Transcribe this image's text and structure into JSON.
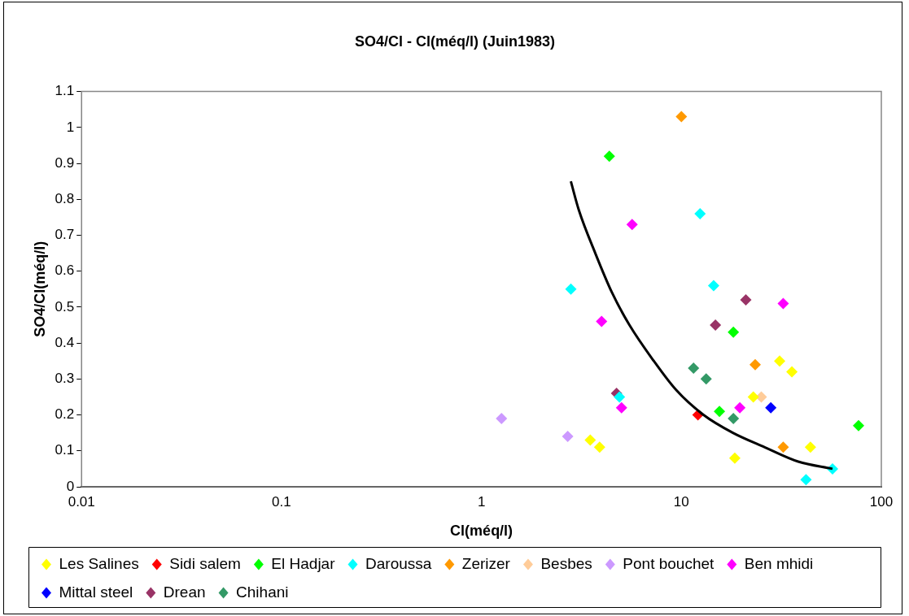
{
  "chart_data": {
    "type": "scatter",
    "title": "SO4/Cl - Cl(méq/l) (Juin1983)",
    "xlabel": "Cl(méq/l)",
    "ylabel": "SO4/Cl(méq/l)",
    "log": "x",
    "xlim": [
      0.01,
      100
    ],
    "xticks": [
      0.01,
      0.1,
      1,
      10,
      100
    ],
    "ylim": [
      0,
      1.1
    ],
    "yticks": [
      0,
      0.1,
      0.2,
      0.3,
      0.4,
      0.5,
      0.6,
      0.7,
      0.8,
      0.9,
      1,
      1.1
    ],
    "grid": false,
    "legend": "bottom",
    "marker": "diamond",
    "series": [
      {
        "name": "Les Salines",
        "color": "#ffff00",
        "x": [
          3.5,
          3.9,
          18.5,
          22.9,
          31,
          35.7,
          44.2
        ],
        "values": [
          0.13,
          0.11,
          0.08,
          0.25,
          0.35,
          0.32,
          0.11
        ]
      },
      {
        "name": "Sidi salem",
        "color": "#ff0000",
        "x": [
          12.1
        ],
        "values": [
          0.2
        ]
      },
      {
        "name": "El Hadjar",
        "color": "#00ff00",
        "x": [
          4.36,
          18.2,
          15.5,
          76.9
        ],
        "values": [
          0.92,
          0.43,
          0.21,
          0.17
        ]
      },
      {
        "name": "Daroussa",
        "color": "#00ffff",
        "x": [
          12.4,
          2.8,
          14.5,
          4.9,
          57,
          42
        ],
        "values": [
          0.76,
          0.55,
          0.56,
          0.25,
          0.05,
          0.02
        ]
      },
      {
        "name": "Zerizer",
        "color": "#ff9900",
        "x": [
          10,
          23.4,
          32.3
        ],
        "values": [
          1.03,
          0.34,
          0.11
        ]
      },
      {
        "name": "Besbes",
        "color": "#ffcc99",
        "x": [
          25.1
        ],
        "values": [
          0.25
        ]
      },
      {
        "name": "Pont bouchet",
        "color": "#cc99ff",
        "x": [
          1.26,
          2.7
        ],
        "values": [
          0.19,
          0.14
        ]
      },
      {
        "name": "Ben mhidi",
        "color": "#ff00ff",
        "x": [
          5.67,
          3.99,
          5.02,
          19.6,
          32.3
        ],
        "values": [
          0.73,
          0.46,
          0.22,
          0.22,
          0.51
        ]
      },
      {
        "name": "Mittal steel",
        "color": "#0000ff",
        "x": [
          28
        ],
        "values": [
          0.22
        ]
      },
      {
        "name": "Drean",
        "color": "#993366",
        "x": [
          21,
          14.8,
          4.74
        ],
        "values": [
          0.52,
          0.45,
          0.26
        ]
      },
      {
        "name": "Chihani",
        "color": "#339966",
        "x": [
          11.5,
          13.3,
          18.2
        ],
        "values": [
          0.33,
          0.3,
          0.19
        ]
      },
      {
        "type": "line",
        "color": "#000000",
        "marker": "none",
        "x": [
          2.8,
          3.07,
          3.71,
          4.5,
          5.5,
          7.28,
          9.39,
          12.9,
          18.1,
          26.1,
          38.4,
          57
        ],
        "values": [
          0.85,
          0.77,
          0.65,
          0.54,
          0.45,
          0.35,
          0.27,
          0.2,
          0.15,
          0.11,
          0.07,
          0.05
        ]
      }
    ]
  }
}
